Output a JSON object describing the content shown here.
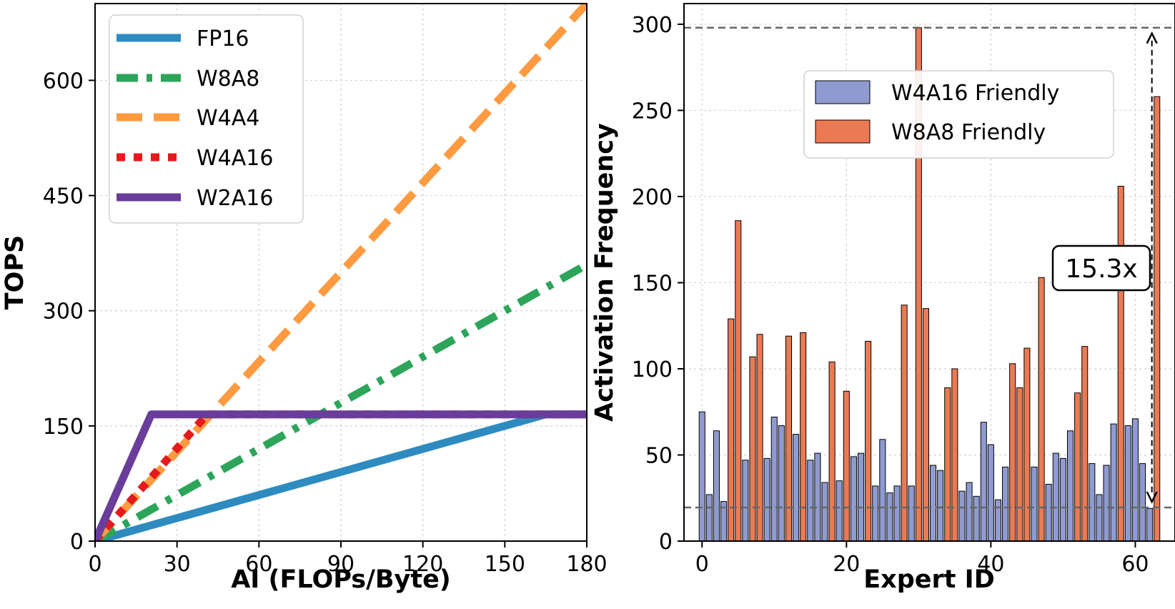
{
  "chart_data": [
    {
      "type": "line",
      "title": "",
      "xlabel": "AI (FLOPs/Byte)",
      "ylabel": "TOPS",
      "xlim": [
        0,
        180
      ],
      "ylim": [
        0,
        700
      ],
      "xticks": [
        "0",
        "30",
        "60",
        "90",
        "120",
        "150",
        "180"
      ],
      "yticks": [
        "0",
        "150",
        "300",
        "450",
        "600"
      ],
      "grid": true,
      "legend_position": "top-left",
      "series": [
        {
          "name": "FP16",
          "color": "#2e8bc0",
          "style": "solid",
          "points": [
            [
              0,
              0
            ],
            [
              165,
              165
            ],
            [
              180,
              165
            ]
          ]
        },
        {
          "name": "W8A8",
          "color": "#2ca55a",
          "style": "dashdot",
          "points": [
            [
              0,
              0
            ],
            [
              180,
              360
            ]
          ]
        },
        {
          "name": "W4A4",
          "color": "#ff9a40",
          "style": "dashed",
          "points": [
            [
              0,
              0
            ],
            [
              180,
              700
            ]
          ]
        },
        {
          "name": "W4A16",
          "color": "#e41a1c",
          "style": "dotted",
          "points": [
            [
              0,
              0
            ],
            [
              41,
              165
            ],
            [
              180,
              165
            ]
          ]
        },
        {
          "name": "W2A16",
          "color": "#6a3d9a",
          "style": "solid",
          "points": [
            [
              0,
              0
            ],
            [
              20.6,
              165
            ],
            [
              180,
              165
            ]
          ]
        }
      ]
    },
    {
      "type": "bar",
      "title": "",
      "xlabel": "Expert ID",
      "ylabel": "Activation Frequency",
      "xlim": [
        -2.5,
        65.5
      ],
      "ylim": [
        0,
        312
      ],
      "xticks": [
        "0",
        "20",
        "40",
        "60"
      ],
      "yticks": [
        "0",
        "50",
        "100",
        "150",
        "200",
        "250",
        "300"
      ],
      "grid": true,
      "legend_position": "upper-center",
      "series": [
        {
          "name": "W4A16 Friendly",
          "color": "#8f9bd0"
        },
        {
          "name": "W8A8 Friendly",
          "color": "#ea7a54"
        }
      ],
      "expert_ids": [
        0,
        1,
        2,
        3,
        4,
        5,
        6,
        7,
        8,
        9,
        10,
        11,
        12,
        13,
        14,
        15,
        16,
        17,
        18,
        19,
        20,
        21,
        22,
        23,
        24,
        25,
        26,
        27,
        28,
        29,
        30,
        31,
        32,
        33,
        34,
        35,
        36,
        37,
        38,
        39,
        40,
        41,
        42,
        43,
        44,
        45,
        46,
        47,
        48,
        49,
        50,
        51,
        52,
        53,
        54,
        55,
        56,
        57,
        58,
        59,
        60,
        61,
        62,
        63
      ],
      "values": [
        75,
        27,
        64,
        23,
        129,
        186,
        47,
        107,
        120,
        48,
        72,
        67,
        119,
        62,
        121,
        47,
        51,
        34,
        104,
        35,
        87,
        49,
        51,
        116,
        32,
        59,
        28,
        32,
        137,
        32,
        298,
        135,
        44,
        41,
        89,
        100,
        29,
        34,
        26,
        69,
        56,
        24,
        43,
        103,
        89,
        112,
        43,
        153,
        33,
        51,
        48,
        64,
        86,
        113,
        45,
        27,
        44,
        68,
        206,
        67,
        71,
        45,
        19,
        258
      ],
      "categories": [
        "W4A16",
        "W4A16",
        "W4A16",
        "W4A16",
        "W8A8",
        "W8A8",
        "W4A16",
        "W8A8",
        "W8A8",
        "W4A16",
        "W4A16",
        "W4A16",
        "W8A8",
        "W4A16",
        "W8A8",
        "W4A16",
        "W4A16",
        "W4A16",
        "W8A8",
        "W4A16",
        "W8A8",
        "W4A16",
        "W4A16",
        "W8A8",
        "W4A16",
        "W4A16",
        "W4A16",
        "W4A16",
        "W8A8",
        "W4A16",
        "W8A8",
        "W8A8",
        "W4A16",
        "W4A16",
        "W8A8",
        "W8A8",
        "W4A16",
        "W4A16",
        "W4A16",
        "W4A16",
        "W4A16",
        "W4A16",
        "W4A16",
        "W8A8",
        "W8A8",
        "W8A8",
        "W4A16",
        "W8A8",
        "W4A16",
        "W4A16",
        "W4A16",
        "W4A16",
        "W8A8",
        "W8A8",
        "W4A16",
        "W4A16",
        "W4A16",
        "W4A16",
        "W8A8",
        "W4A16",
        "W4A16",
        "W4A16",
        "W4A16",
        "W8A8"
      ],
      "reference_lines": [
        298,
        19.5
      ],
      "annotation": {
        "text": "15.3x",
        "from": 298,
        "to": 19.5,
        "x": 62.3
      }
    }
  ]
}
